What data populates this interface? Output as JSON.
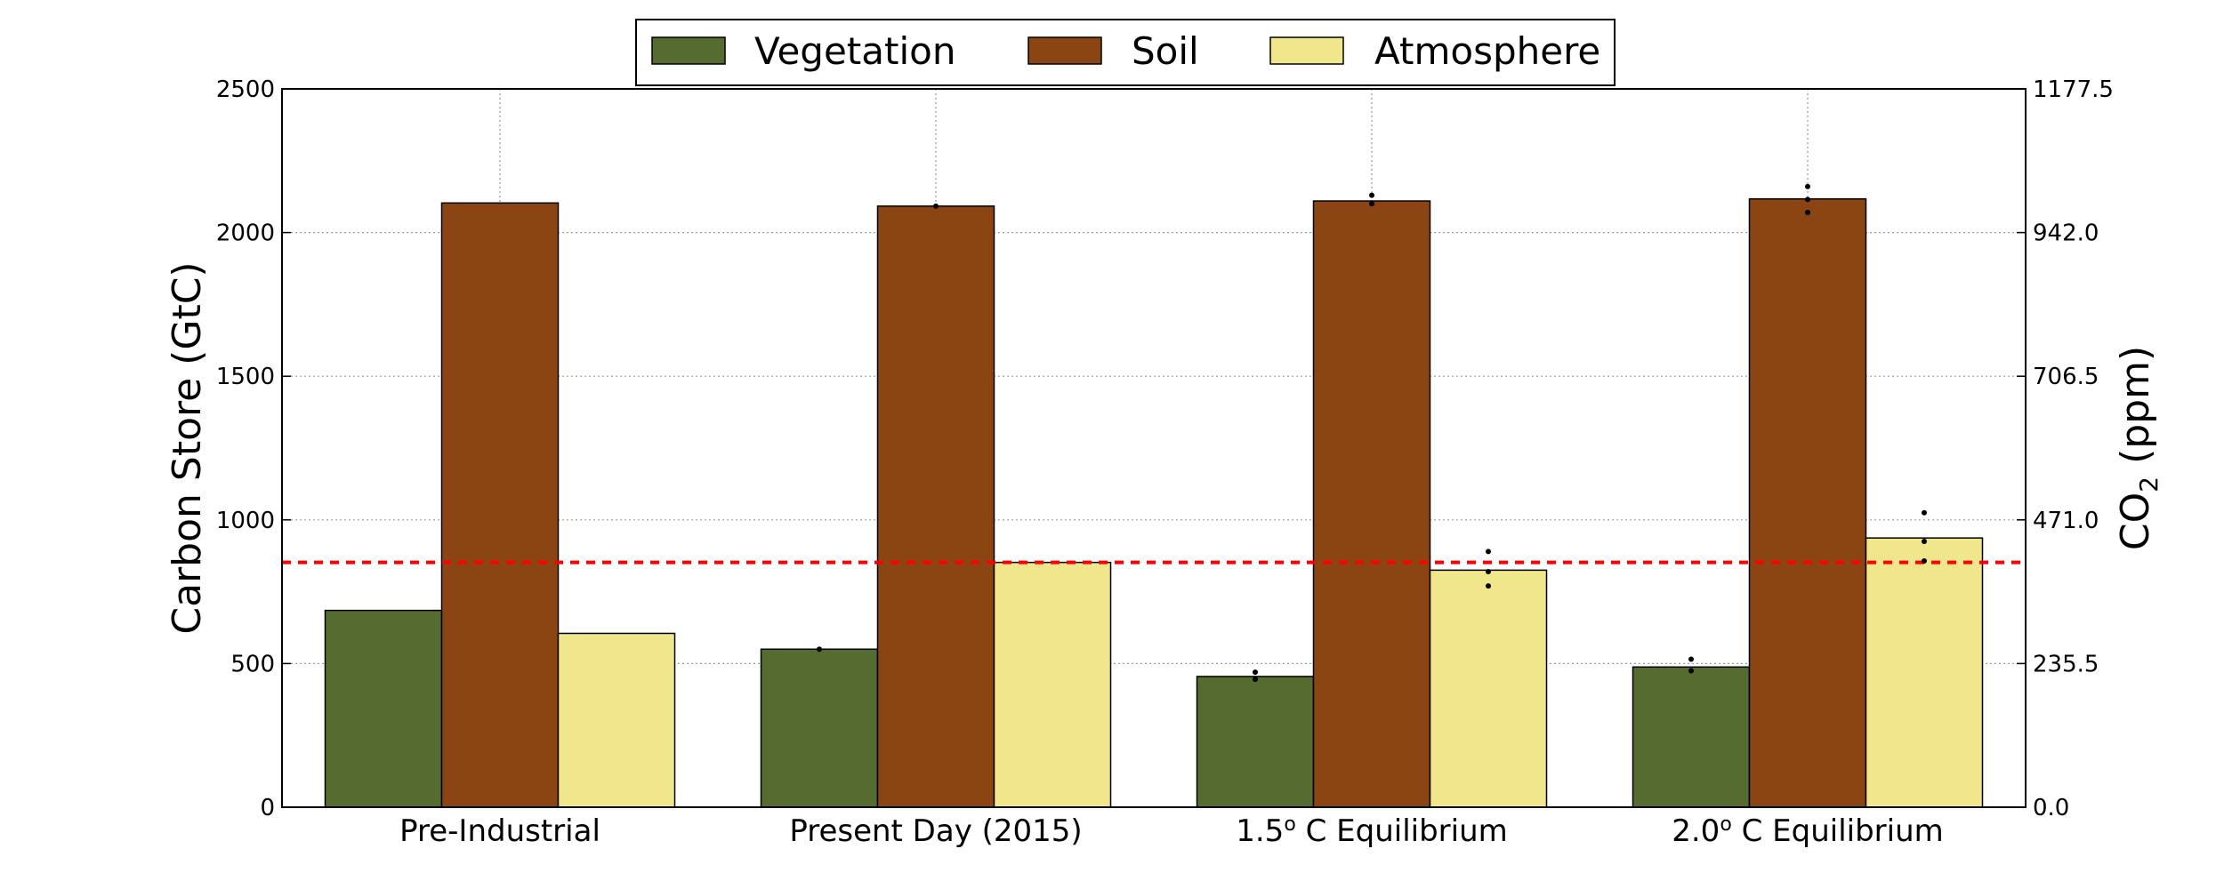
{
  "chart_data": {
    "type": "bar",
    "categories": [
      "Pre-Industrial",
      "Present Day (2015)",
      "1.5°C Equilibrium",
      "2.0°C Equilibrium"
    ],
    "category_labels": [
      {
        "pre": "Pre-Industrial",
        "sup": "",
        "post": ""
      },
      {
        "pre": "Present Day (2015)",
        "sup": "",
        "post": ""
      },
      {
        "pre": "1.5",
        "sup": "o",
        "post": " C Equilibrium"
      },
      {
        "pre": "2.0",
        "sup": "o",
        "post": " C Equilibrium"
      }
    ],
    "series": [
      {
        "name": "Vegetation",
        "color": "#556b2f",
        "values": [
          685,
          550,
          455,
          488
        ]
      },
      {
        "name": "Soil",
        "color": "#8b4513",
        "values": [
          2103,
          2092,
          2110,
          2117
        ]
      },
      {
        "name": "Atmosphere",
        "color": "#f0e68c",
        "values": [
          605,
          852,
          825,
          937
        ]
      }
    ],
    "scatter_points": [
      {
        "category": 1,
        "series": 0,
        "values": [
          550
        ]
      },
      {
        "category": 1,
        "series": 1,
        "values": [
          2092
        ]
      },
      {
        "category": 2,
        "series": 0,
        "values": [
          470,
          445
        ]
      },
      {
        "category": 2,
        "series": 1,
        "values": [
          2130,
          2100
        ]
      },
      {
        "category": 2,
        "series": 2,
        "values": [
          890,
          820,
          770
        ]
      },
      {
        "category": 3,
        "series": 0,
        "values": [
          515,
          475
        ]
      },
      {
        "category": 3,
        "series": 1,
        "values": [
          2160,
          2115,
          2070
        ]
      },
      {
        "category": 3,
        "series": 2,
        "values": [
          1025,
          925,
          857
        ]
      }
    ],
    "reference_line": {
      "value": 852,
      "color": "#ff0000",
      "style": "dashed"
    },
    "ylim": [
      0,
      2500
    ],
    "yticks": [
      0,
      500,
      1000,
      1500,
      2000,
      2500
    ],
    "y2ticks": [
      "0.0",
      "235.5",
      "471.0",
      "706.5",
      "942.0",
      "1177.5"
    ],
    "ylabel": "Carbon Store (GtC)",
    "y2label": {
      "main": "CO",
      "sub": "2",
      "unit": " (ppm)"
    },
    "grid": true,
    "legend_position": "top-center"
  }
}
